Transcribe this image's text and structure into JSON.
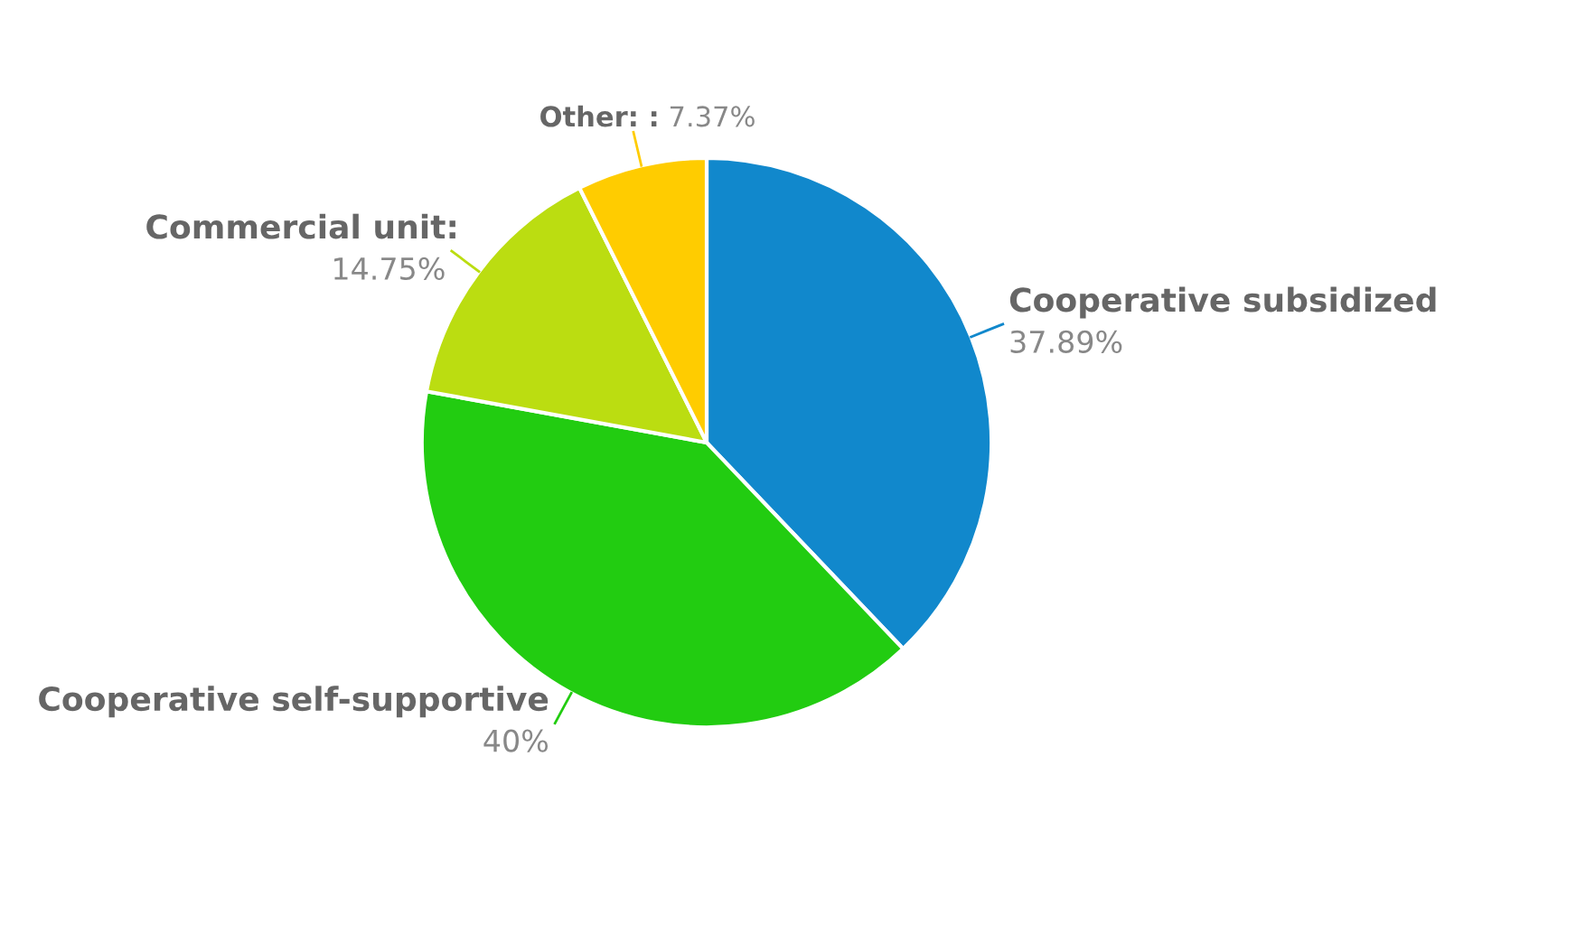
{
  "chart_data": {
    "type": "pie",
    "categories": [
      "Cooperative subsidized",
      "Cooperative self-supportive",
      "Commercial unit",
      "Other"
    ],
    "values": [
      37.89,
      40,
      14.75,
      7.37
    ],
    "value_labels": [
      "37.89%",
      "40%",
      ": 14.75%",
      ": : 7.37%"
    ],
    "colors": [
      "#1188cc",
      "#22cc11",
      "#bbdd11",
      "#ffcc00"
    ],
    "legend": false
  }
}
